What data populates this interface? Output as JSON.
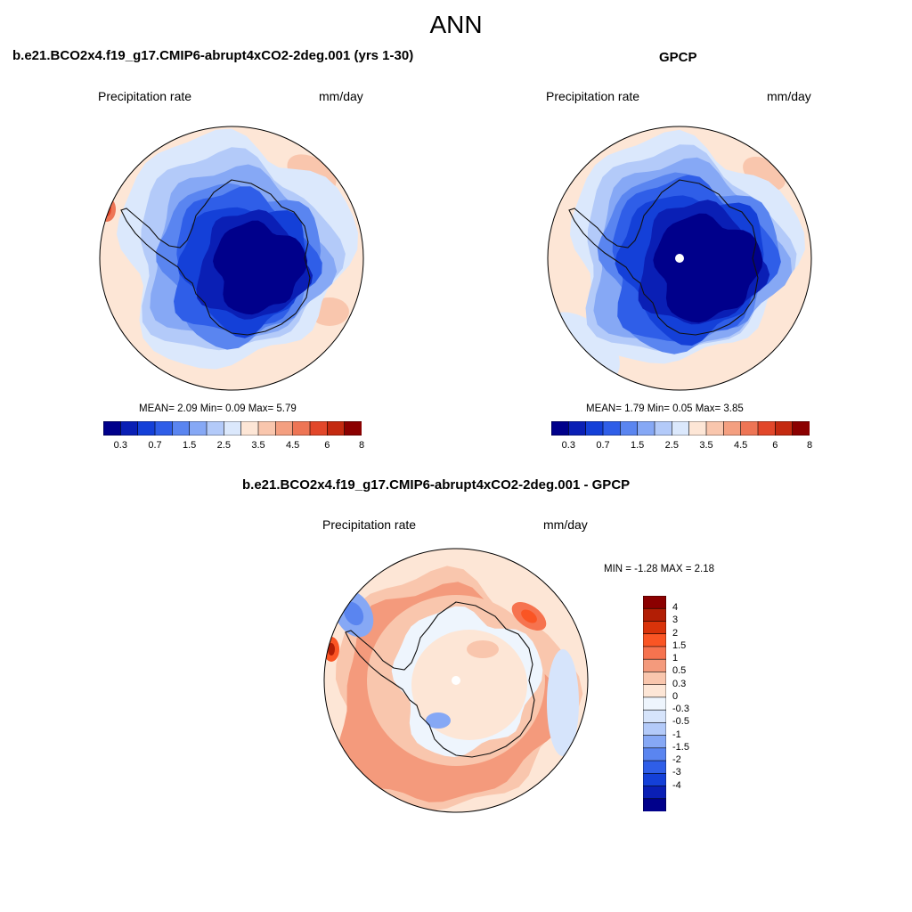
{
  "page_title": "ANN",
  "panels": [
    {
      "title": "b.e21.BCO2x4.f19_g17.CMIP6-abrupt4xCO2-2deg.001 (yrs 1-30)",
      "variable_label": "Precipitation rate",
      "units_label": "mm/day",
      "stats_text": "MEAN=   2.09  Min=    0.09  Max=    5.79"
    },
    {
      "title": "GPCP",
      "variable_label": "Precipitation rate",
      "units_label": "mm/day",
      "stats_text": "MEAN=   1.79  Min=    0.05  Max=    3.85"
    },
    {
      "title": "b.e21.BCO2x4.f19_g17.CMIP6-abrupt4xCO2-2deg.001 - GPCP",
      "variable_label": "Precipitation rate",
      "units_label": "mm/day",
      "stats_text": "MIN =  -1.28 MAX =    2.18"
    }
  ],
  "precip_colorbar": {
    "colors": [
      "#00008b",
      "#0a1fb5",
      "#1440d8",
      "#2f5ee8",
      "#5a85f0",
      "#86a8f5",
      "#b3caf9",
      "#dbe8fc",
      "#fde6d6",
      "#f9c6ad",
      "#f49f80",
      "#ee7555",
      "#e2472a",
      "#c42a10",
      "#8b0000"
    ],
    "tick_labels": [
      "0.3",
      "0.7",
      "1.5",
      "2.5",
      "3.5",
      "4.5",
      "6",
      "8"
    ]
  },
  "diff_colorbar": {
    "colors": [
      "#8b0000",
      "#b21e05",
      "#d9330a",
      "#fa5524",
      "#f6734f",
      "#f49a7c",
      "#f9c6ad",
      "#fde6d6",
      "#eef5fd",
      "#d6e4fb",
      "#b3caf9",
      "#86a8f5",
      "#5a85f0",
      "#2f5ee8",
      "#1440d8",
      "#0a1fb5",
      "#00008b"
    ],
    "tick_labels": [
      "4",
      "3",
      "2",
      "1.5",
      "1",
      "0.5",
      "0.3",
      "0",
      "-0.3",
      "-0.5",
      "-1",
      "-1.5",
      "-2",
      "-3",
      "-4"
    ]
  },
  "map_colors": {
    "coastline": "#111111",
    "missing": "#ffffff"
  }
}
